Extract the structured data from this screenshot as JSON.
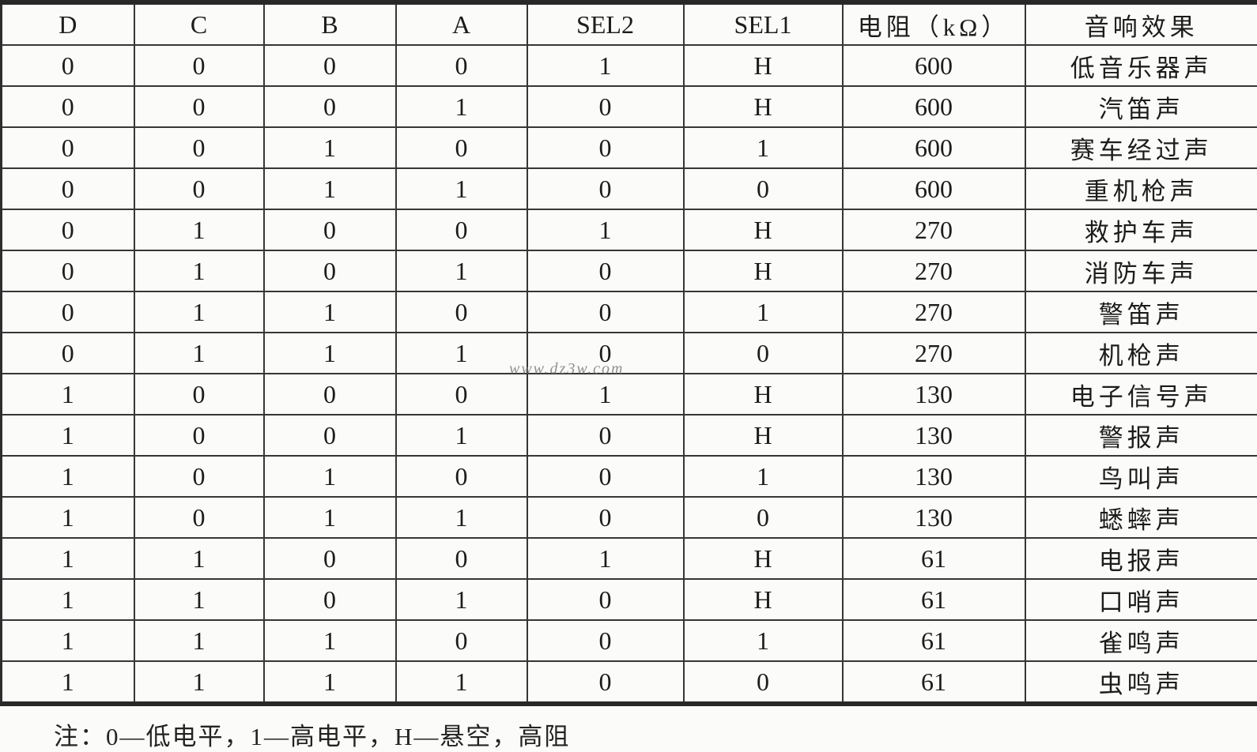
{
  "colors": {
    "background": "#fbfbf9",
    "border": "#363636",
    "outer_border": "#282828",
    "text": "#1c1c1c",
    "watermark": "#767676"
  },
  "watermark": {
    "text": "www.dz3w.com"
  },
  "footnote": {
    "text": "注：0—低电平，1—高电平，H—悬空，高阻"
  },
  "table": {
    "headers": [
      "D",
      "C",
      "B",
      "A",
      "SEL2",
      "SEL1",
      "电阻（kΩ）",
      "音响效果"
    ],
    "rows": [
      [
        "0",
        "0",
        "0",
        "0",
        "1",
        "H",
        "600",
        "低音乐器声"
      ],
      [
        "0",
        "0",
        "0",
        "1",
        "0",
        "H",
        "600",
        "汽笛声"
      ],
      [
        "0",
        "0",
        "1",
        "0",
        "0",
        "1",
        "600",
        "赛车经过声"
      ],
      [
        "0",
        "0",
        "1",
        "1",
        "0",
        "0",
        "600",
        "重机枪声"
      ],
      [
        "0",
        "1",
        "0",
        "0",
        "1",
        "H",
        "270",
        "救护车声"
      ],
      [
        "0",
        "1",
        "0",
        "1",
        "0",
        "H",
        "270",
        "消防车声"
      ],
      [
        "0",
        "1",
        "1",
        "0",
        "0",
        "1",
        "270",
        "警笛声"
      ],
      [
        "0",
        "1",
        "1",
        "1",
        "0",
        "0",
        "270",
        "机枪声"
      ],
      [
        "1",
        "0",
        "0",
        "0",
        "1",
        "H",
        "130",
        "电子信号声"
      ],
      [
        "1",
        "0",
        "0",
        "1",
        "0",
        "H",
        "130",
        "警报声"
      ],
      [
        "1",
        "0",
        "1",
        "0",
        "0",
        "1",
        "130",
        "鸟叫声"
      ],
      [
        "1",
        "0",
        "1",
        "1",
        "0",
        "0",
        "130",
        "蟋蟀声"
      ],
      [
        "1",
        "1",
        "0",
        "0",
        "1",
        "H",
        "61",
        "电报声"
      ],
      [
        "1",
        "1",
        "0",
        "1",
        "0",
        "H",
        "61",
        "口哨声"
      ],
      [
        "1",
        "1",
        "1",
        "0",
        "0",
        "1",
        "61",
        "雀鸣声"
      ],
      [
        "1",
        "1",
        "1",
        "1",
        "0",
        "0",
        "61",
        "虫鸣声"
      ]
    ]
  }
}
